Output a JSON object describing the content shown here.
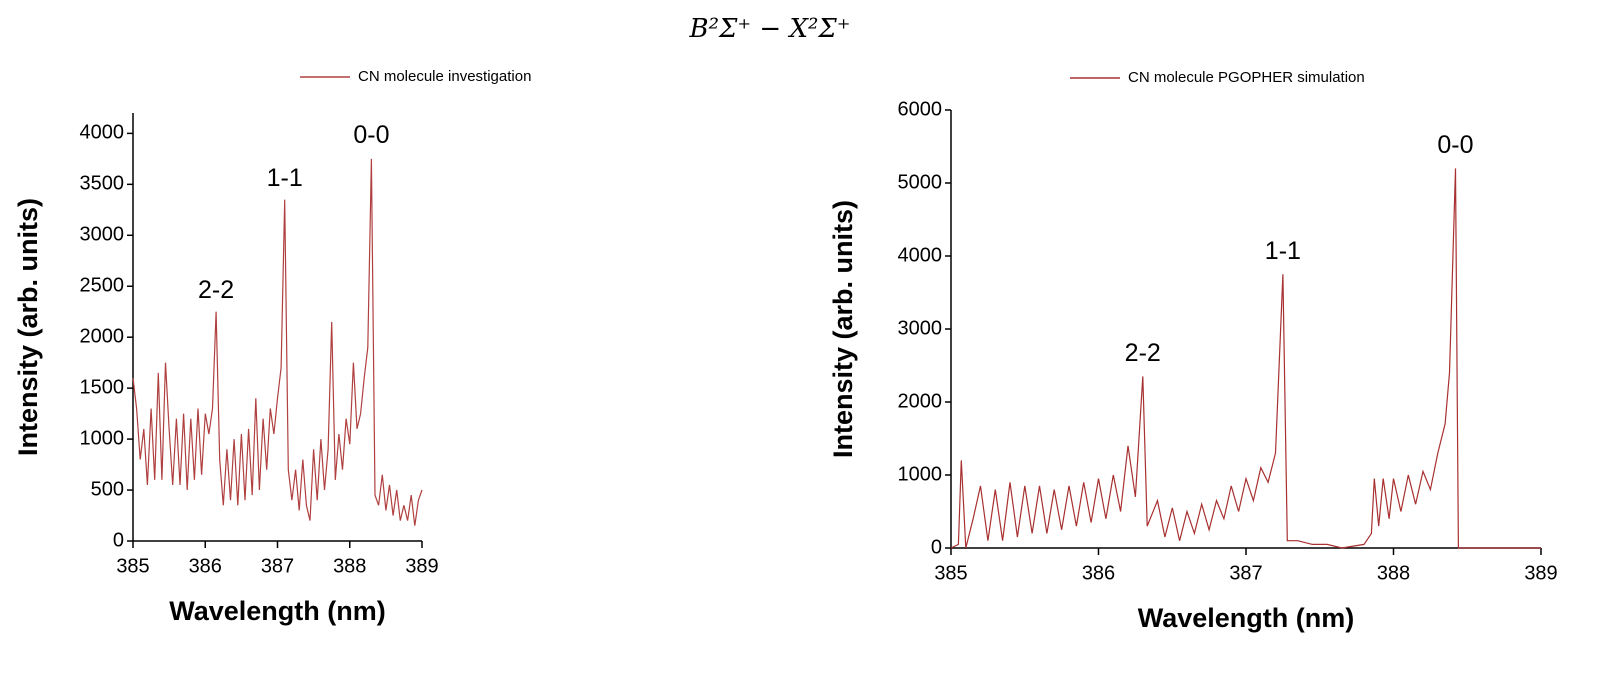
{
  "title": "B²Σ⁺ − X²Σ⁺",
  "chart_data": [
    {
      "type": "line",
      "legend": "top",
      "xlabel": "Wavelength (nm)",
      "ylabel": "Intensity (arb. units)",
      "xlim": [
        385,
        389
      ],
      "xticks": [
        385,
        386,
        387,
        388,
        389
      ],
      "ylim": [
        0,
        4200
      ],
      "yticks": [
        0,
        500,
        1000,
        1500,
        2000,
        2500,
        3000,
        3500,
        4000
      ],
      "annotations": [
        {
          "text": "2-2",
          "x": 386.15,
          "y": 2450
        },
        {
          "text": "1-1",
          "x": 387.1,
          "y": 3550
        },
        {
          "text": "0-0",
          "x": 388.3,
          "y": 3970
        }
      ],
      "series": [
        {
          "name": "CN molecule investigation",
          "color": "#b04040",
          "x": [
            385.0,
            385.05,
            385.1,
            385.15,
            385.2,
            385.25,
            385.3,
            385.35,
            385.4,
            385.45,
            385.5,
            385.55,
            385.6,
            385.65,
            385.7,
            385.75,
            385.8,
            385.85,
            385.9,
            385.95,
            386.0,
            386.05,
            386.1,
            386.15,
            386.2,
            386.25,
            386.3,
            386.35,
            386.4,
            386.45,
            386.5,
            386.55,
            386.6,
            386.65,
            386.7,
            386.75,
            386.8,
            386.85,
            386.9,
            386.95,
            387.0,
            387.05,
            387.1,
            387.15,
            387.2,
            387.25,
            387.3,
            387.35,
            387.4,
            387.45,
            387.5,
            387.55,
            387.6,
            387.65,
            387.7,
            387.75,
            387.8,
            387.85,
            387.9,
            387.95,
            388.0,
            388.05,
            388.1,
            388.15,
            388.2,
            388.25,
            388.3,
            388.35,
            388.4,
            388.45,
            388.5,
            388.55,
            388.6,
            388.65,
            388.7,
            388.75,
            388.8,
            388.85,
            388.9,
            388.95,
            389.0
          ],
          "values": [
            1600,
            1300,
            800,
            1100,
            550,
            1300,
            600,
            1650,
            600,
            1750,
            1100,
            550,
            1200,
            550,
            1250,
            500,
            1200,
            600,
            1300,
            650,
            1250,
            1050,
            1300,
            2250,
            800,
            350,
            900,
            400,
            1000,
            350,
            1050,
            400,
            1100,
            450,
            1400,
            500,
            1200,
            700,
            1300,
            1050,
            1400,
            1700,
            3350,
            700,
            400,
            700,
            300,
            800,
            350,
            200,
            900,
            400,
            1000,
            500,
            900,
            2150,
            600,
            1050,
            700,
            1200,
            950,
            1750,
            1100,
            1250,
            1600,
            1900,
            3750,
            450,
            350,
            650,
            300,
            550,
            250,
            500,
            200,
            350,
            200,
            450,
            150,
            400,
            500
          ]
        }
      ]
    },
    {
      "type": "line",
      "legend": "top",
      "xlabel": "Wavelength (nm)",
      "ylabel": "Intensity (arb. units)",
      "xlim": [
        385,
        389
      ],
      "xticks": [
        385,
        386,
        387,
        388,
        389
      ],
      "ylim": [
        0,
        6000
      ],
      "yticks": [
        0,
        1000,
        2000,
        3000,
        4000,
        5000,
        6000
      ],
      "annotations": [
        {
          "text": "2-2",
          "x": 386.3,
          "y": 2650
        },
        {
          "text": "1-1",
          "x": 387.25,
          "y": 4050
        },
        {
          "text": "0-0",
          "x": 388.42,
          "y": 5500
        }
      ],
      "series": [
        {
          "name": "CN molecule PGOPHER simulation",
          "color": "#a83030",
          "x": [
            385.0,
            385.05,
            385.07,
            385.1,
            385.15,
            385.2,
            385.25,
            385.3,
            385.35,
            385.4,
            385.45,
            385.5,
            385.55,
            385.6,
            385.65,
            385.7,
            385.75,
            385.8,
            385.85,
            385.9,
            385.95,
            386.0,
            386.05,
            386.1,
            386.15,
            386.2,
            386.25,
            386.3,
            386.33,
            386.4,
            386.45,
            386.5,
            386.55,
            386.6,
            386.65,
            386.7,
            386.75,
            386.8,
            386.85,
            386.9,
            386.95,
            387.0,
            387.05,
            387.1,
            387.15,
            387.2,
            387.25,
            387.28,
            387.35,
            387.45,
            387.55,
            387.65,
            387.8,
            387.85,
            387.87,
            387.9,
            387.93,
            387.97,
            388.0,
            388.05,
            388.1,
            388.15,
            388.2,
            388.25,
            388.3,
            388.35,
            388.38,
            388.42,
            388.44,
            389.0
          ],
          "values": [
            0,
            50,
            1200,
            0,
            400,
            850,
            100,
            800,
            100,
            900,
            150,
            850,
            200,
            850,
            200,
            800,
            250,
            850,
            300,
            900,
            350,
            950,
            400,
            1000,
            500,
            1400,
            700,
            2350,
            300,
            650,
            150,
            550,
            100,
            500,
            200,
            600,
            250,
            650,
            400,
            850,
            500,
            950,
            650,
            1100,
            900,
            1300,
            3750,
            100,
            100,
            50,
            50,
            0,
            50,
            200,
            950,
            300,
            950,
            400,
            950,
            500,
            1000,
            600,
            1050,
            800,
            1300,
            1700,
            2400,
            5200,
            0,
            0
          ]
        }
      ]
    }
  ]
}
